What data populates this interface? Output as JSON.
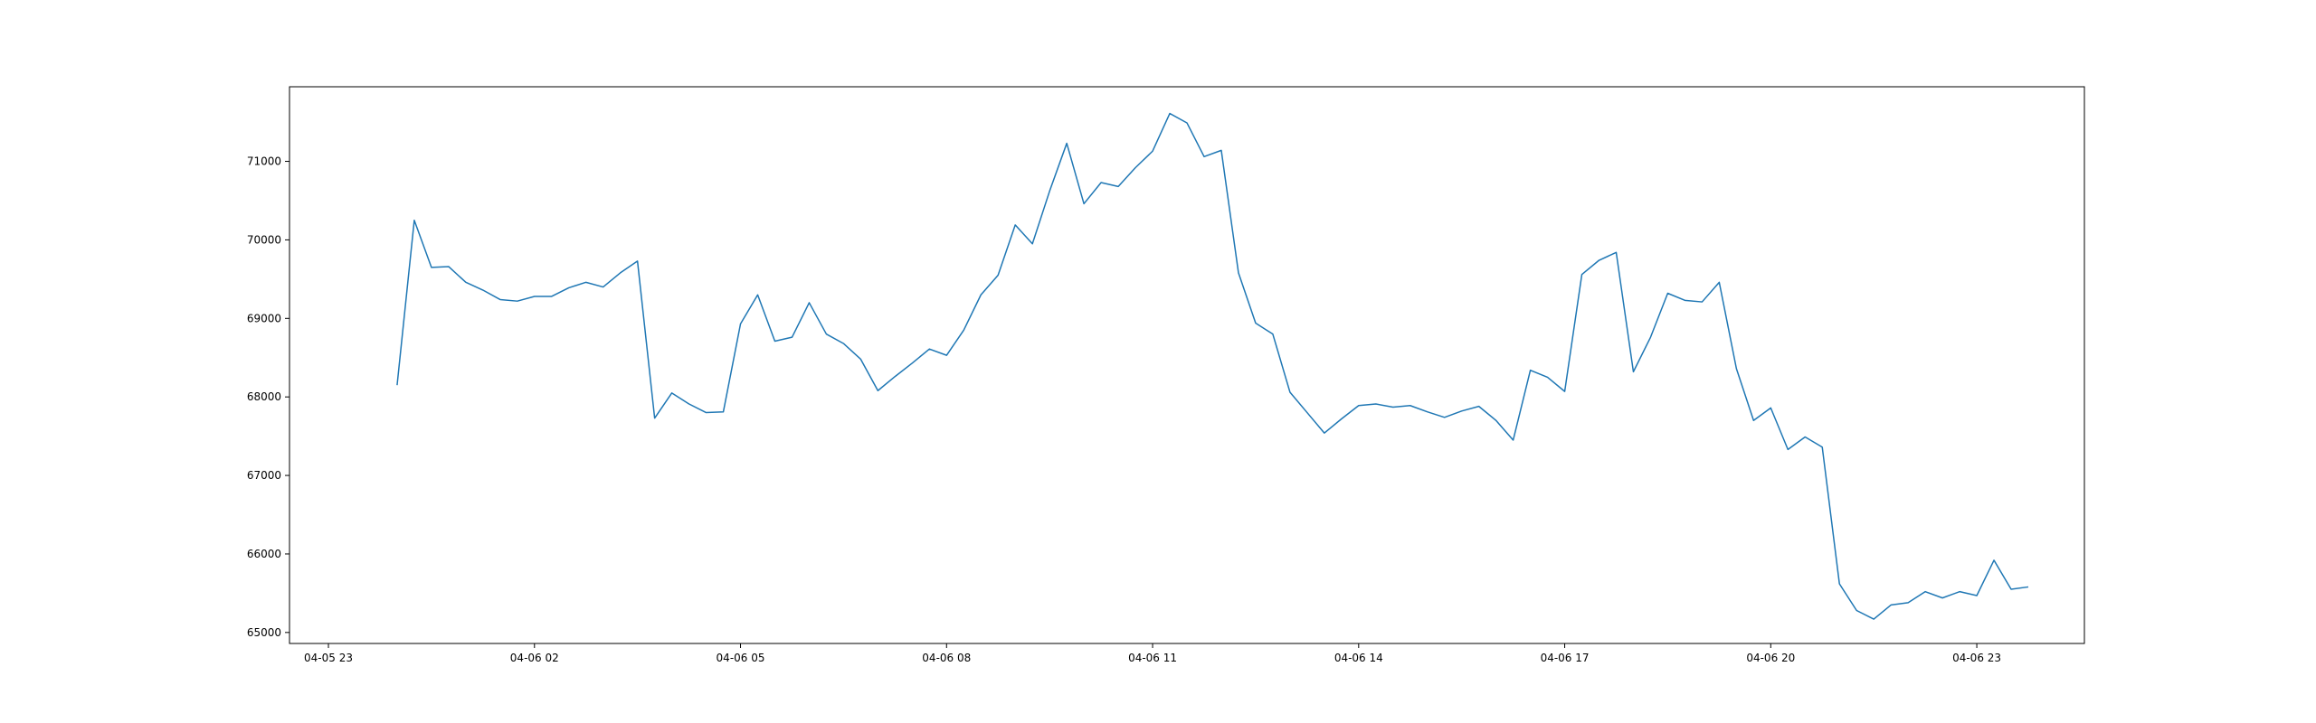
{
  "chart_data": {
    "type": "line",
    "title": "",
    "xlabel": "",
    "ylabel": "",
    "x_ticks": [
      "04-05 23",
      "04-06 02",
      "04-06 05",
      "04-06 08",
      "04-06 11",
      "04-06 14",
      "04-06 17",
      "04-06 20",
      "04-06 23"
    ],
    "y_ticks": [
      65000,
      66000,
      67000,
      68000,
      69000,
      70000,
      71000
    ],
    "y_tick_labels": [
      "65000",
      "66000",
      "67000",
      "68000",
      "69000",
      "70000",
      "71000"
    ],
    "xlim": [
      "2024-04-05 22:26",
      "2024-04-07 00:34"
    ],
    "ylim": [
      64860,
      71950
    ],
    "grid": false,
    "series": [
      {
        "color": "#1f77b4",
        "x": [
          "2024-04-06 00:00",
          "2024-04-06 00:15",
          "2024-04-06 00:30",
          "2024-04-06 00:45",
          "2024-04-06 01:00",
          "2024-04-06 01:15",
          "2024-04-06 01:30",
          "2024-04-06 01:45",
          "2024-04-06 02:00",
          "2024-04-06 02:15",
          "2024-04-06 02:30",
          "2024-04-06 02:45",
          "2024-04-06 03:00",
          "2024-04-06 03:15",
          "2024-04-06 03:30",
          "2024-04-06 03:45",
          "2024-04-06 04:00",
          "2024-04-06 04:15",
          "2024-04-06 04:30",
          "2024-04-06 04:45",
          "2024-04-06 05:00",
          "2024-04-06 05:15",
          "2024-04-06 05:30",
          "2024-04-06 05:45",
          "2024-04-06 06:00",
          "2024-04-06 06:15",
          "2024-04-06 06:30",
          "2024-04-06 06:45",
          "2024-04-06 07:00",
          "2024-04-06 07:15",
          "2024-04-06 07:30",
          "2024-04-06 07:45",
          "2024-04-06 08:00",
          "2024-04-06 08:15",
          "2024-04-06 08:30",
          "2024-04-06 08:45",
          "2024-04-06 09:00",
          "2024-04-06 09:15",
          "2024-04-06 09:30",
          "2024-04-06 09:45",
          "2024-04-06 10:00",
          "2024-04-06 10:15",
          "2024-04-06 10:30",
          "2024-04-06 10:45",
          "2024-04-06 11:00",
          "2024-04-06 11:15",
          "2024-04-06 11:30",
          "2024-04-06 11:45",
          "2024-04-06 12:00",
          "2024-04-06 12:15",
          "2024-04-06 12:30",
          "2024-04-06 12:45",
          "2024-04-06 13:00",
          "2024-04-06 13:15",
          "2024-04-06 13:30",
          "2024-04-06 13:45",
          "2024-04-06 14:00",
          "2024-04-06 14:15",
          "2024-04-06 14:30",
          "2024-04-06 14:45",
          "2024-04-06 15:00",
          "2024-04-06 15:15",
          "2024-04-06 15:30",
          "2024-04-06 15:45",
          "2024-04-06 16:00",
          "2024-04-06 16:15",
          "2024-04-06 16:30",
          "2024-04-06 16:45",
          "2024-04-06 17:00",
          "2024-04-06 17:15",
          "2024-04-06 17:30",
          "2024-04-06 17:45",
          "2024-04-06 18:00",
          "2024-04-06 18:15",
          "2024-04-06 18:30",
          "2024-04-06 18:45",
          "2024-04-06 19:00",
          "2024-04-06 19:15",
          "2024-04-06 19:30",
          "2024-04-06 19:45",
          "2024-04-06 20:00",
          "2024-04-06 20:15",
          "2024-04-06 20:30",
          "2024-04-06 20:45",
          "2024-04-06 21:00",
          "2024-04-06 21:15",
          "2024-04-06 21:30",
          "2024-04-06 21:45",
          "2024-04-06 22:00",
          "2024-04-06 22:15",
          "2024-04-06 22:30",
          "2024-04-06 22:45",
          "2024-04-06 23:00",
          "2024-04-06 23:15",
          "2024-04-06 23:30",
          "2024-04-06 23:45"
        ],
        "y": [
          68150,
          70250,
          69650,
          69660,
          69460,
          69360,
          69240,
          69220,
          69280,
          69280,
          69390,
          69460,
          69400,
          69580,
          69730,
          67730,
          68050,
          67910,
          67800,
          67810,
          68930,
          69300,
          68710,
          68760,
          69200,
          68800,
          68680,
          68480,
          68080,
          68260,
          68430,
          68610,
          68530,
          68850,
          69300,
          69550,
          70190,
          69950,
          70620,
          71230,
          70460,
          70730,
          70680,
          70920,
          71130,
          71610,
          71490,
          71060,
          71140,
          69580,
          68940,
          68800,
          68060,
          67800,
          67540,
          67720,
          67890,
          67910,
          67870,
          67890,
          67810,
          67740,
          67820,
          67880,
          67700,
          67450,
          68340,
          68250,
          68070,
          69560,
          69740,
          69840,
          68320,
          68760,
          69320,
          69230,
          69210,
          69460,
          68360,
          67700,
          67860,
          67330,
          67490,
          67360,
          65620,
          65280,
          65170,
          65350,
          65380,
          65520,
          65440,
          65520,
          65470,
          65920,
          65550,
          65580
        ]
      }
    ]
  }
}
